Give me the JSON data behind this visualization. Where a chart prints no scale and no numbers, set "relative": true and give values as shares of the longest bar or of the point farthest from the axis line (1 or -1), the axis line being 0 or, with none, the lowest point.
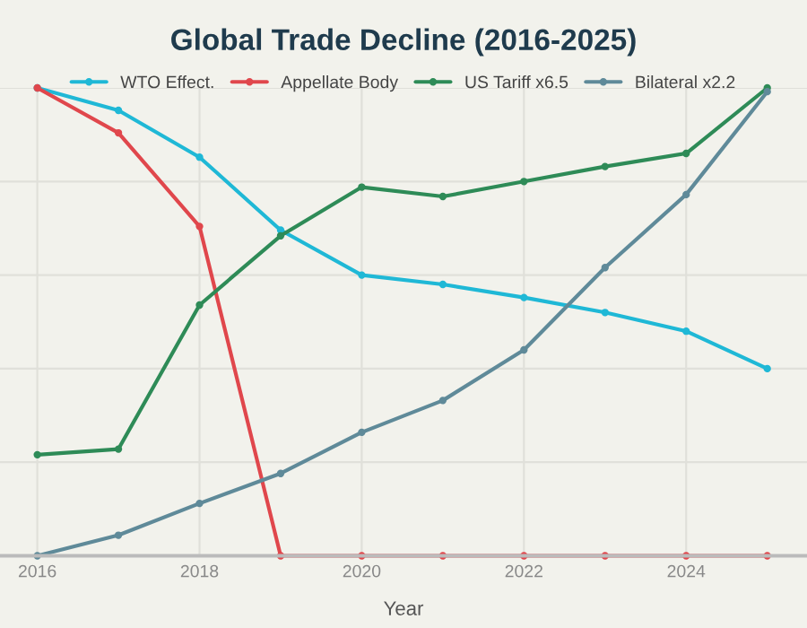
{
  "chart_data": {
    "type": "line",
    "title": "Global Trade Decline (2016-2025)",
    "xlabel": "Year",
    "relative": true,
    "x": [
      2016,
      2017,
      2018,
      2019,
      2020,
      2021,
      2022,
      2023,
      2024,
      2025
    ],
    "xlim": [
      2015.54,
      2025.49
    ],
    "xticks": [
      2016,
      2018,
      2020,
      2022,
      2024
    ],
    "series": [
      {
        "name": "WTO Effect.",
        "color": "#1fb8d6",
        "values": [
          1.0,
          0.952,
          0.852,
          0.696,
          0.6,
          0.58,
          0.552,
          0.52,
          0.48,
          0.4
        ]
      },
      {
        "name": "Appellate Body",
        "color": "#e0474c",
        "values": [
          1.0,
          0.904,
          0.704,
          0,
          0,
          0,
          0,
          0,
          0,
          0
        ]
      },
      {
        "name": "US Tariff x6.5",
        "color": "#2e8b57",
        "values": [
          0.216,
          0.228,
          0.536,
          0.684,
          0.788,
          0.768,
          0.8,
          0.832,
          0.86,
          1.0
        ]
      },
      {
        "name": "Bilateral x2.2",
        "color": "#5f8a99",
        "values": [
          0,
          0.044,
          0.112,
          0.176,
          0.264,
          0.332,
          0.44,
          0.616,
          0.772,
          0.992
        ]
      }
    ],
    "grid": true,
    "legend": "top",
    "marker": "circle",
    "line_style": "solid"
  }
}
